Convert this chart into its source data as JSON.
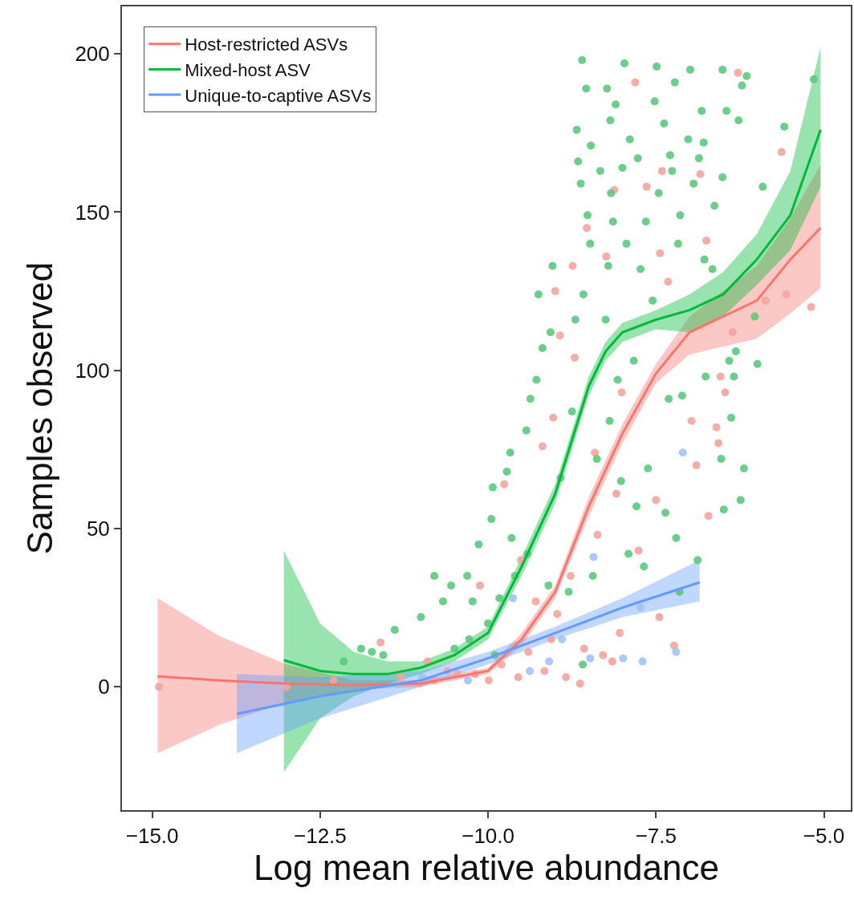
{
  "chart_data": {
    "type": "scatter",
    "xlabel": "Log mean relative abundance",
    "ylabel": "Samples observed",
    "xlim": [
      -15.45,
      -4.6
    ],
    "ylim": [
      -39,
      215
    ],
    "xticks": [
      {
        "value": -15,
        "label": "−15.0"
      },
      {
        "value": -12.5,
        "label": "−12.5"
      },
      {
        "value": -10,
        "label": "−10.0"
      },
      {
        "value": -7.5,
        "label": "−7.5"
      },
      {
        "value": -5,
        "label": "−5.0"
      }
    ],
    "yticks": [
      0,
      50,
      100,
      150,
      200
    ],
    "grid": false,
    "legend": "top left",
    "series": [
      {
        "type": "scatter",
        "marker": "circle",
        "color": "#f4a49e",
        "x": [
          -6.28,
          -7.81,
          -6.84,
          -7.41,
          -7.64,
          -8.12,
          -8.53,
          -7.44,
          -8.24,
          -6.75,
          -5.63,
          -5.56,
          -5.19,
          -5.87,
          -8.74,
          -9.0,
          -7.32,
          -6.36,
          -6.54,
          -6.47,
          -6.6,
          -6.57,
          -6.97,
          -6.72,
          -6.9,
          -7.5,
          -7.76,
          -7.45,
          -7.23,
          -8.04,
          -8.29,
          -8.63,
          -8.15,
          -8.57,
          -8.77,
          -8.37,
          -8.09,
          -8.01,
          -8.41,
          -9.03,
          -9.19,
          -8.71,
          -8.93,
          -9.76,
          -9.51,
          -9.29,
          -8.97,
          -9.06,
          -9.4,
          -9.8,
          -10.19,
          -9.99,
          -9.55,
          -9.16,
          -8.84,
          -10.46,
          -10.12,
          -11.02,
          -11.3,
          -10.8,
          -10.6,
          -11.6,
          -14.9,
          -13.0,
          -12.3,
          -10.9
        ],
        "values": [
          194,
          191,
          162,
          163,
          158,
          157,
          145,
          137,
          136,
          141,
          169,
          124,
          120,
          122,
          133,
          125,
          128,
          112,
          98,
          93,
          82,
          77,
          84,
          54,
          70,
          59,
          43,
          22,
          13,
          17,
          10,
          1,
          8,
          12,
          35,
          48,
          61,
          93,
          74,
          85,
          76,
          104,
          111,
          64,
          40,
          27,
          23,
          15,
          11,
          7,
          4,
          2,
          3,
          5,
          3,
          4,
          32,
          1,
          3,
          2,
          5,
          14,
          0,
          0,
          2,
          8
        ]
      },
      {
        "type": "scatter",
        "marker": "circle",
        "color": "#5cc97e",
        "x": [
          -8.6,
          -7.97,
          -7.49,
          -6.99,
          -6.51,
          -6.15,
          -8.54,
          -8.23,
          -7.22,
          -6.22,
          -8.1,
          -7.52,
          -6.82,
          -6.45,
          -8.18,
          -7.38,
          -6.27,
          -8.68,
          -7.89,
          -7.02,
          -8.47,
          -6.79,
          -8.66,
          -7.77,
          -7.29,
          -6.86,
          -8.33,
          -8.0,
          -7.26,
          -6.51,
          -8.62,
          -8.17,
          -7.46,
          -6.94,
          -5.59,
          -5.15,
          -5.91,
          -8.52,
          -8.14,
          -7.65,
          -7.14,
          -6.63,
          -8.48,
          -7.94,
          -7.17,
          -6.78,
          -9.04,
          -8.21,
          -7.73,
          -6.66,
          -9.25,
          -8.58,
          -7.55,
          -6.03,
          -9.07,
          -8.7,
          -8.25,
          -5.99,
          -6.31,
          -6.41,
          -6.34,
          -6.76,
          -6.38,
          -6.53,
          -6.19,
          -6.24,
          -6.49,
          -6.88,
          -7.2,
          -7.11,
          -7.31,
          -7.83,
          -8.07,
          -9.19,
          -9.28,
          -9.37,
          -9.43,
          -9.67,
          -9.72,
          -9.93,
          -9.95,
          -10.14,
          -8.19,
          -8.38,
          -8.02,
          -7.79,
          -7.62,
          -7.36,
          -7.91,
          -7.68,
          -8.59,
          -8.8,
          -9.1,
          -9.41,
          -9.65,
          -7.15,
          -8.44,
          -8.92,
          -8.75,
          -10.8,
          -11.39,
          -11.0,
          -11.89,
          -11.73,
          -11.56,
          -12.15,
          -10.55,
          -10.31,
          -10.67,
          -10.23,
          -10.28,
          -10.0,
          -9.83,
          -9.6,
          -9.9,
          -10.5
        ],
        "values": [
          198,
          197,
          196,
          195,
          195,
          193,
          189,
          189,
          191,
          190,
          184,
          185,
          182,
          182,
          179,
          178,
          179,
          176,
          173,
          173,
          171,
          172,
          166,
          167,
          168,
          167,
          163,
          164,
          163,
          161,
          159,
          156,
          156,
          159,
          177,
          192,
          158,
          149,
          147,
          147,
          149,
          152,
          140,
          140,
          140,
          135,
          133,
          133,
          132,
          132,
          124,
          124,
          122,
          117,
          112,
          116,
          116,
          102,
          106,
          103,
          98,
          98,
          85,
          72,
          69,
          59,
          56,
          40,
          47,
          92,
          91,
          103,
          97,
          107,
          97,
          91,
          81,
          74,
          68,
          63,
          53,
          45,
          84,
          72,
          65,
          57,
          69,
          55,
          42,
          38,
          7,
          30,
          32,
          42,
          47,
          30,
          35,
          66,
          87,
          35,
          18,
          22,
          12,
          11,
          10,
          8,
          32,
          35,
          27,
          27,
          15,
          20,
          28,
          35,
          10,
          12
        ]
      },
      {
        "type": "scatter",
        "marker": "circle",
        "color": "#a3c1f7",
        "x": [
          -7.1,
          -7.2,
          -7.7,
          -7.99,
          -8.48,
          -7.73,
          -8.43,
          -8.9,
          -9.38,
          -9.63,
          -9.09,
          -10.3,
          -10.98,
          -13.5
        ],
        "values": [
          74,
          11,
          8,
          9,
          9,
          25,
          41,
          15,
          5,
          28,
          8,
          2,
          3,
          1
        ]
      },
      {
        "type": "line",
        "marker": "none",
        "name": "Host-restricted ASVs",
        "color": "#f8766d",
        "x": [
          -14.92,
          -14,
          -13,
          -12,
          -11,
          -10,
          -9.5,
          -9,
          -8.5,
          -8,
          -7.5,
          -7,
          -6,
          -5.5,
          -5.05
        ],
        "values": [
          3.3,
          2,
          1,
          0.5,
          1,
          5,
          15,
          30,
          57,
          80,
          99,
          112,
          122,
          135,
          145
        ],
        "lower": [
          -21,
          -12,
          -5,
          -1,
          0,
          4,
          13,
          28,
          54,
          77,
          96,
          105,
          110,
          118,
          126
        ],
        "upper": [
          28,
          16,
          7,
          2,
          2,
          6,
          17,
          32,
          60,
          83,
          102,
          117,
          133,
          148,
          165
        ]
      },
      {
        "type": "line",
        "marker": "none",
        "name": "Mixed-host ASV",
        "color": "#00ba38",
        "x": [
          -13.04,
          -12.5,
          -12,
          -11.5,
          -11,
          -10.5,
          -10,
          -9.5,
          -9,
          -8.5,
          -8.25,
          -8,
          -7.5,
          -7,
          -6.5,
          -6,
          -5.5,
          -5.05
        ],
        "values": [
          8.4,
          5,
          4,
          4,
          6,
          10,
          17,
          38,
          61,
          95,
          106,
          112,
          116,
          119,
          124,
          135,
          149,
          176
        ],
        "lower": [
          -27,
          -10,
          -3,
          1,
          4,
          8,
          15,
          35,
          58,
          92,
          103,
          109,
          113,
          112,
          117,
          127,
          138,
          158
        ],
        "upper": [
          43,
          20,
          11,
          8,
          8,
          12,
          19,
          41,
          64,
          98,
          109,
          115,
          119,
          124,
          131,
          143,
          163,
          202
        ]
      },
      {
        "type": "line",
        "marker": "none",
        "name": "Unique-to-captive ASVs",
        "color": "#619cff",
        "x": [
          -13.74,
          -12.5,
          -11,
          -10,
          -9,
          -8,
          -6.85
        ],
        "values": [
          -8.6,
          -3,
          2,
          9,
          17,
          25,
          33
        ],
        "lower": [
          -21,
          -10,
          0,
          7,
          15,
          22,
          27
        ],
        "upper": [
          4,
          3,
          5,
          11,
          19,
          28,
          40
        ]
      }
    ]
  }
}
